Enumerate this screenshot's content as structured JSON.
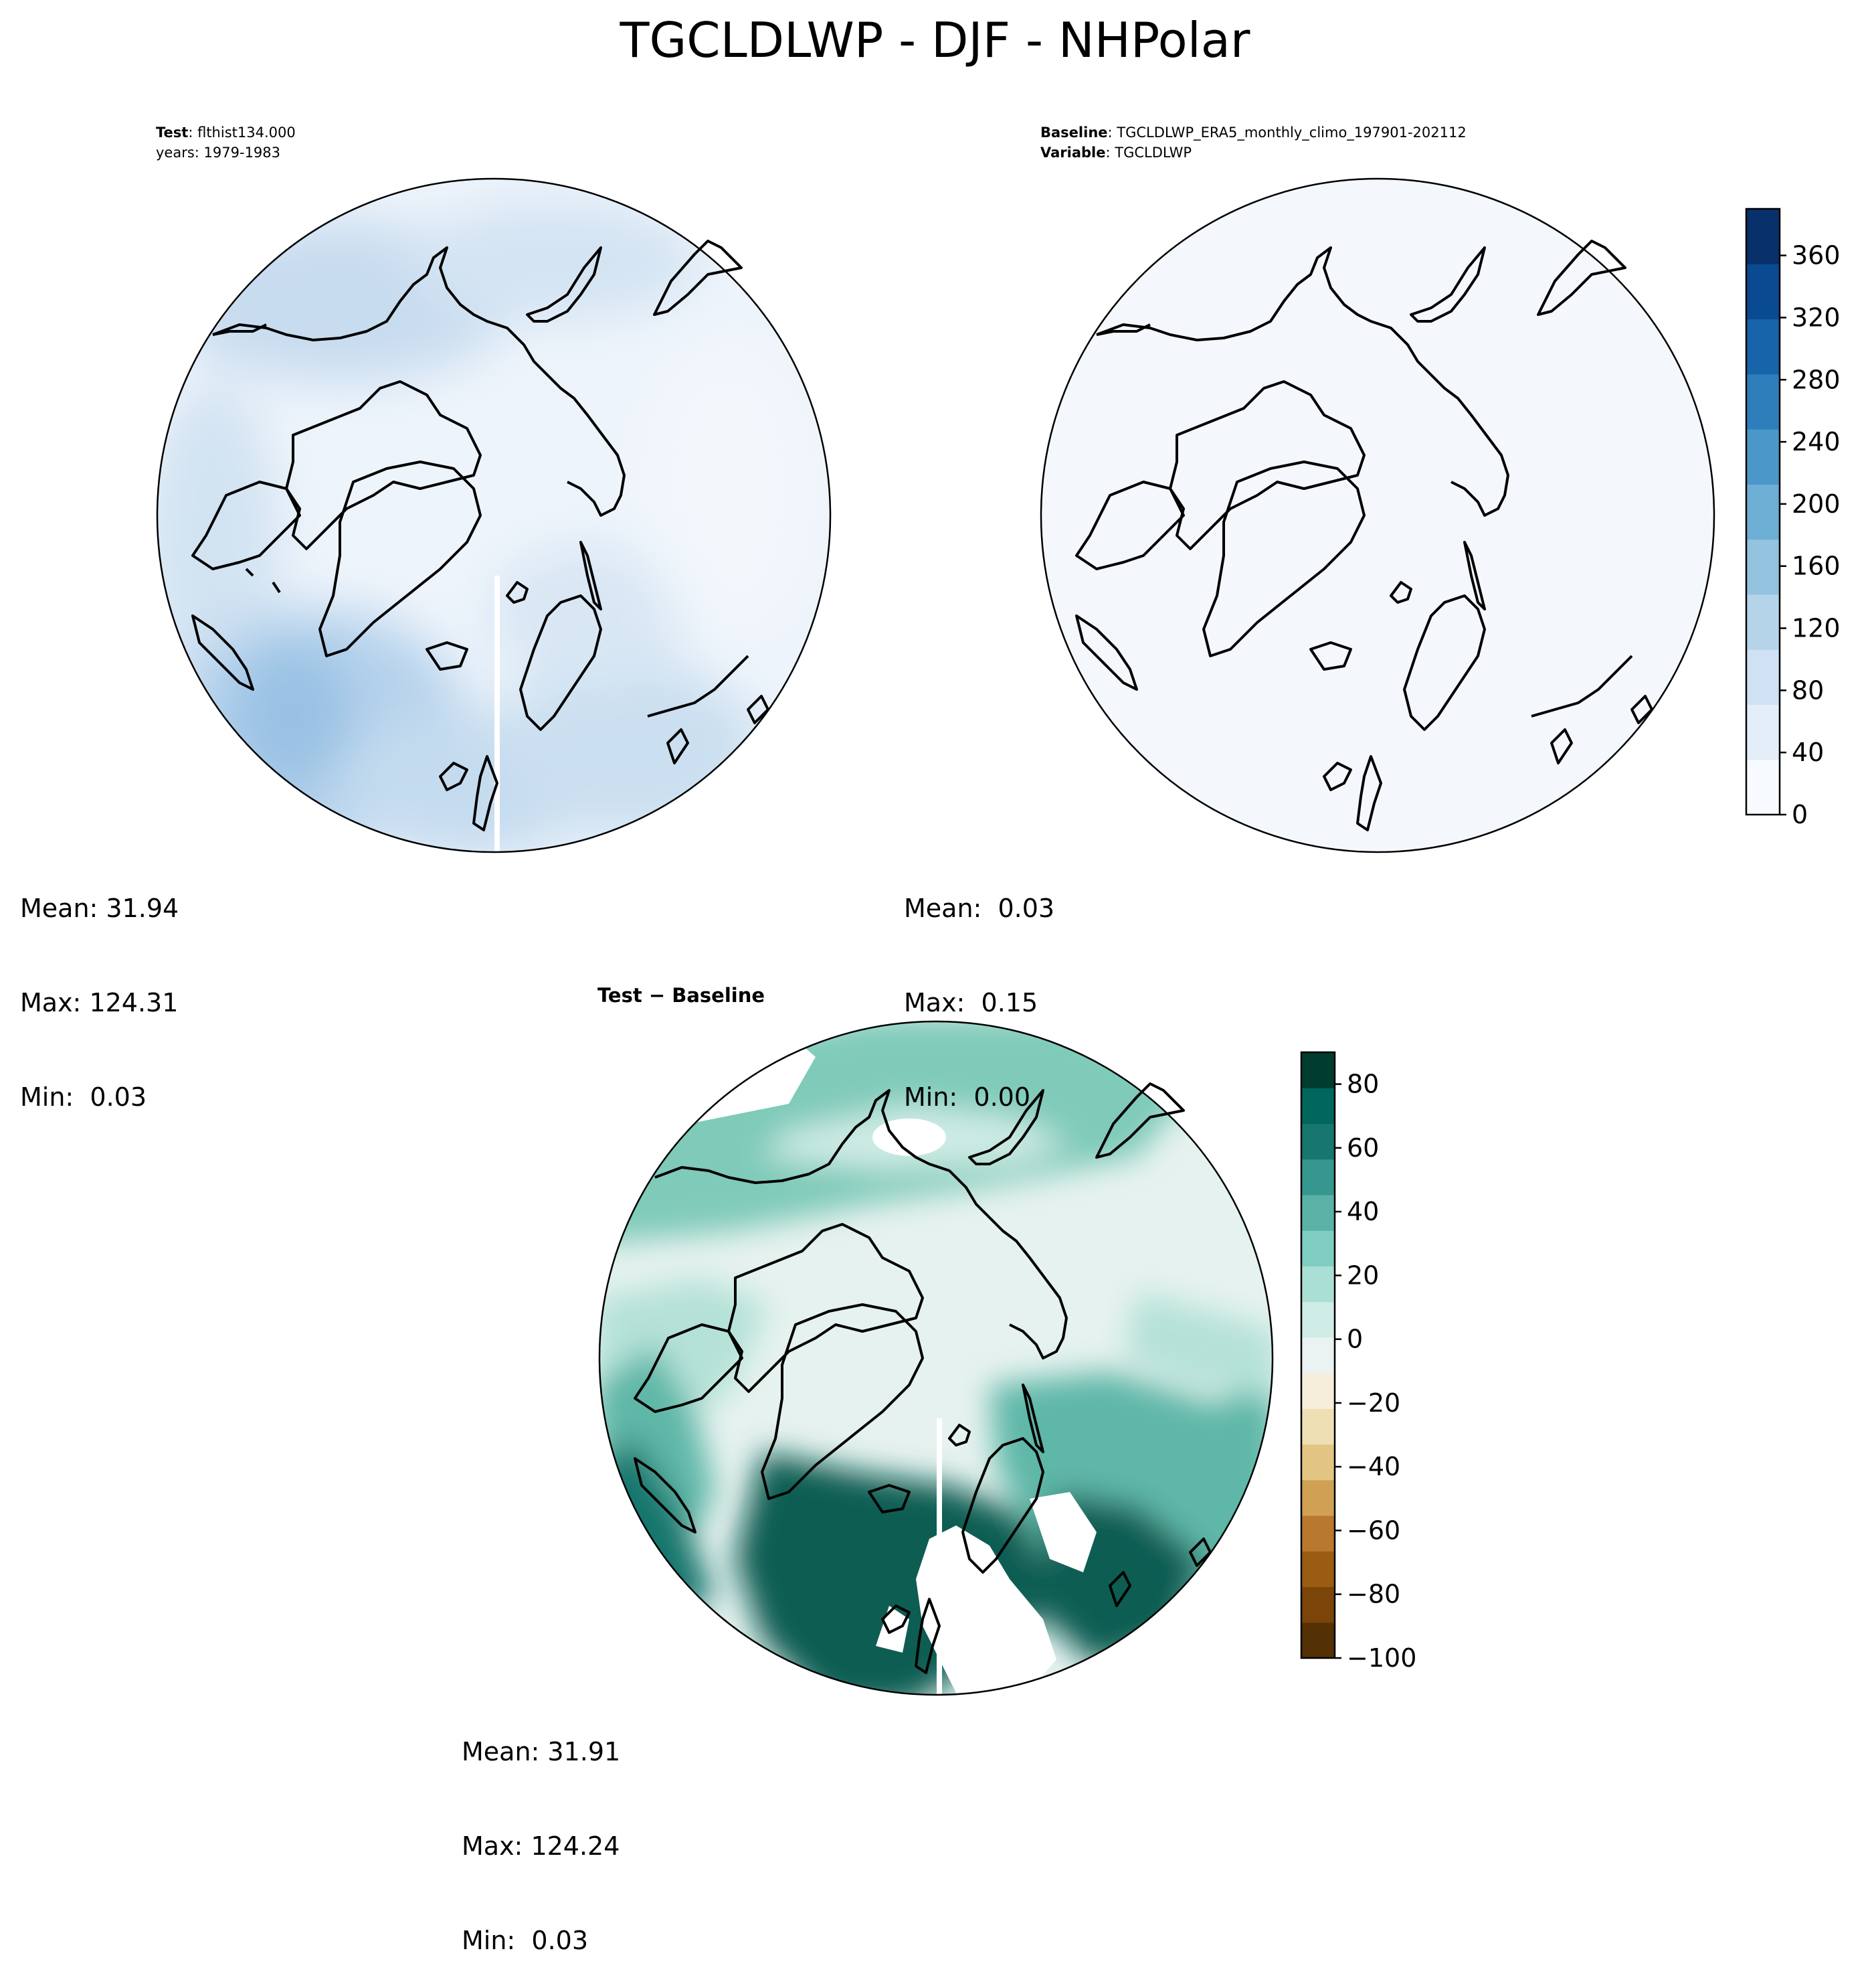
{
  "title": "TGCLDLWP - DJF - NHPolar",
  "panels": {
    "test": {
      "label_bold": "Test",
      "label_value": "flthist134.000",
      "line2": "years: 1979-1983",
      "mean": "Mean: 31.94",
      "max": "Max: 124.31",
      "min": "Min:  0.03"
    },
    "baseline": {
      "label_bold": "Baseline",
      "label_value": "TGCLDLWP_ERA5_monthly_climo_197901-202112",
      "var_bold": "Variable",
      "var_value": "TGCLDLWP",
      "mean": "Mean:  0.03",
      "max": "Max:  0.15",
      "min": "Min:  0.00"
    },
    "diff": {
      "title": "Test − Baseline",
      "mean": "Mean: 31.91",
      "max": "Max: 124.24",
      "min": "Min:  0.03"
    }
  },
  "colorbars": {
    "blues": {
      "vmin": 0,
      "vmax": 390,
      "ticks": [
        0,
        40,
        80,
        120,
        160,
        200,
        240,
        280,
        320,
        360
      ],
      "tick_labels": [
        "0",
        "40",
        "80",
        "120",
        "160",
        "200",
        "240",
        "280",
        "320",
        "360"
      ],
      "colors": [
        "#f7fbff",
        "#e3eef9",
        "#cfe1f2",
        "#b5d4e9",
        "#93c3df",
        "#6daed5",
        "#4b97c9",
        "#2f7ebc",
        "#1864aa",
        "#0a4a90",
        "#08306b"
      ]
    },
    "diff": {
      "vmin": -100,
      "vmax": 90,
      "ticks": [
        80,
        60,
        40,
        20,
        0,
        -20,
        -40,
        -60,
        -80,
        -100
      ],
      "tick_labels": [
        "80",
        "60",
        "40",
        "20",
        "0",
        "−20",
        "−40",
        "−60",
        "−80",
        "−100"
      ],
      "colors": [
        "#543005",
        "#7b4408",
        "#9a5b13",
        "#b8792e",
        "#d0a055",
        "#e2c582",
        "#efdfb4",
        "#f6eedb",
        "#eaf3f1",
        "#d0ece7",
        "#aadfd6",
        "#80cdc1",
        "#5ab2a6",
        "#35978f",
        "#17766e",
        "#01665e",
        "#003c30"
      ]
    }
  }
}
